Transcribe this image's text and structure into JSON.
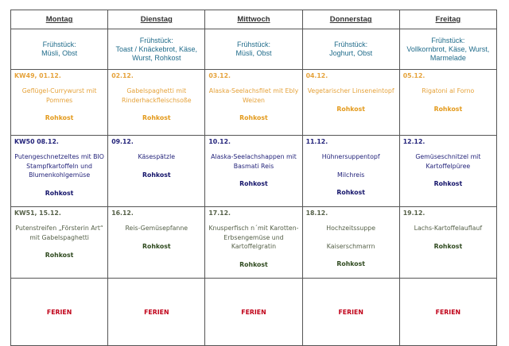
{
  "days": [
    "Montag",
    "Dienstag",
    "Mittwoch",
    "Donnerstag",
    "Freitag"
  ],
  "breakfast": [
    [
      "Frühstück:",
      "Müsli, Obst"
    ],
    [
      "Frühstück:",
      "Toast / Knäckebrot, Käse,",
      "Wurst, Rohkost"
    ],
    [
      "Frühstück:",
      "Müsli, Obst"
    ],
    [
      "Frühstück:",
      "Joghurt, Obst"
    ],
    [
      "Frühstück:",
      "Vollkornbrot, Käse, Wurst,",
      "Marmelade"
    ]
  ],
  "weeks": [
    {
      "color": "#e5a23a",
      "cells": [
        {
          "date": "KW49, 01.12.",
          "items": [
            {
              "text": "Geflügel-Currywurst mit Pommes"
            },
            {
              "text": "Rohkost",
              "bold": true
            }
          ]
        },
        {
          "date": "02.12.",
          "items": [
            {
              "text": "Gabelspaghetti mit Rinderhackfleischsoße"
            },
            {
              "text": "Rohkost",
              "bold": true
            }
          ]
        },
        {
          "date": "03.12.",
          "items": [
            {
              "text": "Alaska-Seelachsfilet mit Ebly Weizen"
            },
            {
              "text": "Rohkost",
              "bold": true
            }
          ]
        },
        {
          "date": "04.12.",
          "items": [
            {
              "text": "Vegetarischer Linseneintopf"
            },
            {
              "text": "Rohkost",
              "bold": true
            }
          ]
        },
        {
          "date": "05.12.",
          "items": [
            {
              "text": "Rigatoni al Forno"
            },
            {
              "text": "Rohkost",
              "bold": true
            }
          ]
        }
      ]
    },
    {
      "color": "#23237a",
      "cells": [
        {
          "date": "KW50 08.12.",
          "items": [
            {
              "text": "Putengeschnetzeltes mit BIO Stampfkartoffeln und Blumenkohlgemüse"
            },
            {
              "text": "Rohkost",
              "bold": true
            }
          ]
        },
        {
          "date": "09.12.",
          "items": [
            {
              "text": "Käsespätzle"
            },
            {
              "text": "Rohkost",
              "bold": true
            }
          ]
        },
        {
          "date": "10.12.",
          "items": [
            {
              "text": "Alaska-Seelachshappen mit Basmati Reis"
            },
            {
              "text": "Rohkost",
              "bold": true
            }
          ]
        },
        {
          "date": "11.12.",
          "items": [
            {
              "text": "Hühnersuppentopf"
            },
            {
              "text": "Milchreis"
            },
            {
              "text": "Rohkost",
              "bold": true
            }
          ]
        },
        {
          "date": "12.12.",
          "items": [
            {
              "text": "Gemüseschnitzel mit Kartoffelpüree"
            },
            {
              "text": "Rohkost",
              "bold": true
            }
          ]
        }
      ]
    },
    {
      "color": "#556048",
      "cells": [
        {
          "date": "KW51, 15.12.",
          "items": [
            {
              "text": "Putenstreifen „Försterin Art“ mit Gabelspaghetti"
            },
            {
              "text": "Rohkost",
              "bold": true
            }
          ]
        },
        {
          "date": "16.12.",
          "items": [
            {
              "text": "Reis-Gemüsepfanne"
            },
            {
              "text": "Rohkost",
              "bold": true
            }
          ]
        },
        {
          "date": "17.12.",
          "items": [
            {
              "text": "Knusperfisch n´mit Karotten-Erbsengemüse und Kartoffelgratin"
            },
            {
              "text": "Rohkost",
              "bold": true
            }
          ]
        },
        {
          "date": "18.12.",
          "items": [
            {
              "text": "Hochzeitssuppe"
            },
            {
              "text": "Kaiserschmarrn"
            },
            {
              "text": "Rohkost",
              "bold": true
            }
          ]
        },
        {
          "date": "19.12.",
          "items": [
            {
              "text": "Lachs-Kartoffelauflauf"
            },
            {
              "text": "Rohkost",
              "bold": true
            }
          ]
        }
      ]
    }
  ],
  "holiday": [
    "FERIEN",
    "FERIEN",
    "FERIEN",
    "FERIEN",
    "FERIEN"
  ],
  "colors": {
    "breakfast": "#1f6b8a",
    "week49": "#e5a23a",
    "week50": "#23237a",
    "week51": "#556048",
    "holiday": "#c00018"
  }
}
